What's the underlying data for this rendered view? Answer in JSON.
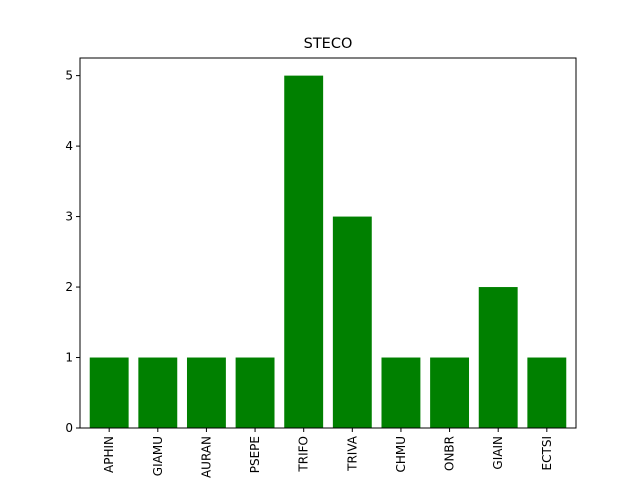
{
  "chart_data": {
    "type": "bar",
    "title": "STECO",
    "xlabel": "",
    "ylabel": "",
    "categories": [
      "APHIN",
      "GIAMU",
      "AURAN",
      "PSEPE",
      "TRIFO",
      "TRIVA",
      "CHMU",
      "ONBR",
      "GIAIN",
      "ECTSI"
    ],
    "values": [
      1,
      1,
      1,
      1,
      5,
      3,
      1,
      1,
      2,
      1
    ],
    "ylim": [
      0,
      5.25
    ],
    "yticks": [
      0,
      1,
      2,
      3,
      4,
      5
    ],
    "grid": false,
    "bar_color": "#008000",
    "x_tick_rotation": "vertical"
  }
}
